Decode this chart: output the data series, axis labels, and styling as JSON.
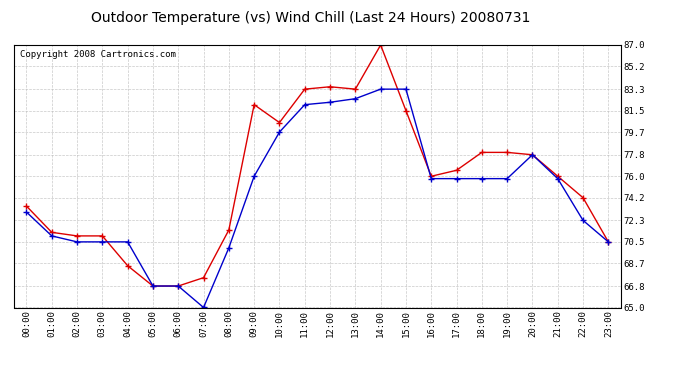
{
  "title": "Outdoor Temperature (vs) Wind Chill (Last 24 Hours) 20080731",
  "copyright": "Copyright 2008 Cartronics.com",
  "hours": [
    "00:00",
    "01:00",
    "02:00",
    "03:00",
    "04:00",
    "05:00",
    "06:00",
    "07:00",
    "08:00",
    "09:00",
    "10:00",
    "11:00",
    "12:00",
    "13:00",
    "14:00",
    "15:00",
    "16:00",
    "17:00",
    "18:00",
    "19:00",
    "20:00",
    "21:00",
    "22:00",
    "23:00"
  ],
  "temp": [
    73.5,
    71.3,
    71.0,
    71.0,
    68.5,
    66.8,
    66.8,
    67.5,
    71.5,
    82.0,
    80.5,
    83.3,
    83.5,
    83.3,
    87.0,
    81.5,
    76.0,
    76.5,
    78.0,
    78.0,
    77.8,
    76.0,
    74.2,
    70.5
  ],
  "windchill": [
    73.0,
    71.0,
    70.5,
    70.5,
    70.5,
    66.8,
    66.8,
    65.0,
    70.0,
    76.0,
    79.7,
    82.0,
    82.2,
    82.5,
    83.3,
    83.3,
    75.8,
    75.8,
    75.8,
    75.8,
    77.8,
    75.8,
    72.3,
    70.5
  ],
  "temp_color": "#dd0000",
  "windchill_color": "#0000cc",
  "ylim": [
    65.0,
    87.0
  ],
  "yticks": [
    65.0,
    66.8,
    68.7,
    70.5,
    72.3,
    74.2,
    76.0,
    77.8,
    79.7,
    81.5,
    83.3,
    85.2,
    87.0
  ],
  "grid_color": "#bbbbbb",
  "bg_color": "#ffffff",
  "title_fontsize": 10,
  "copyright_fontsize": 6.5
}
